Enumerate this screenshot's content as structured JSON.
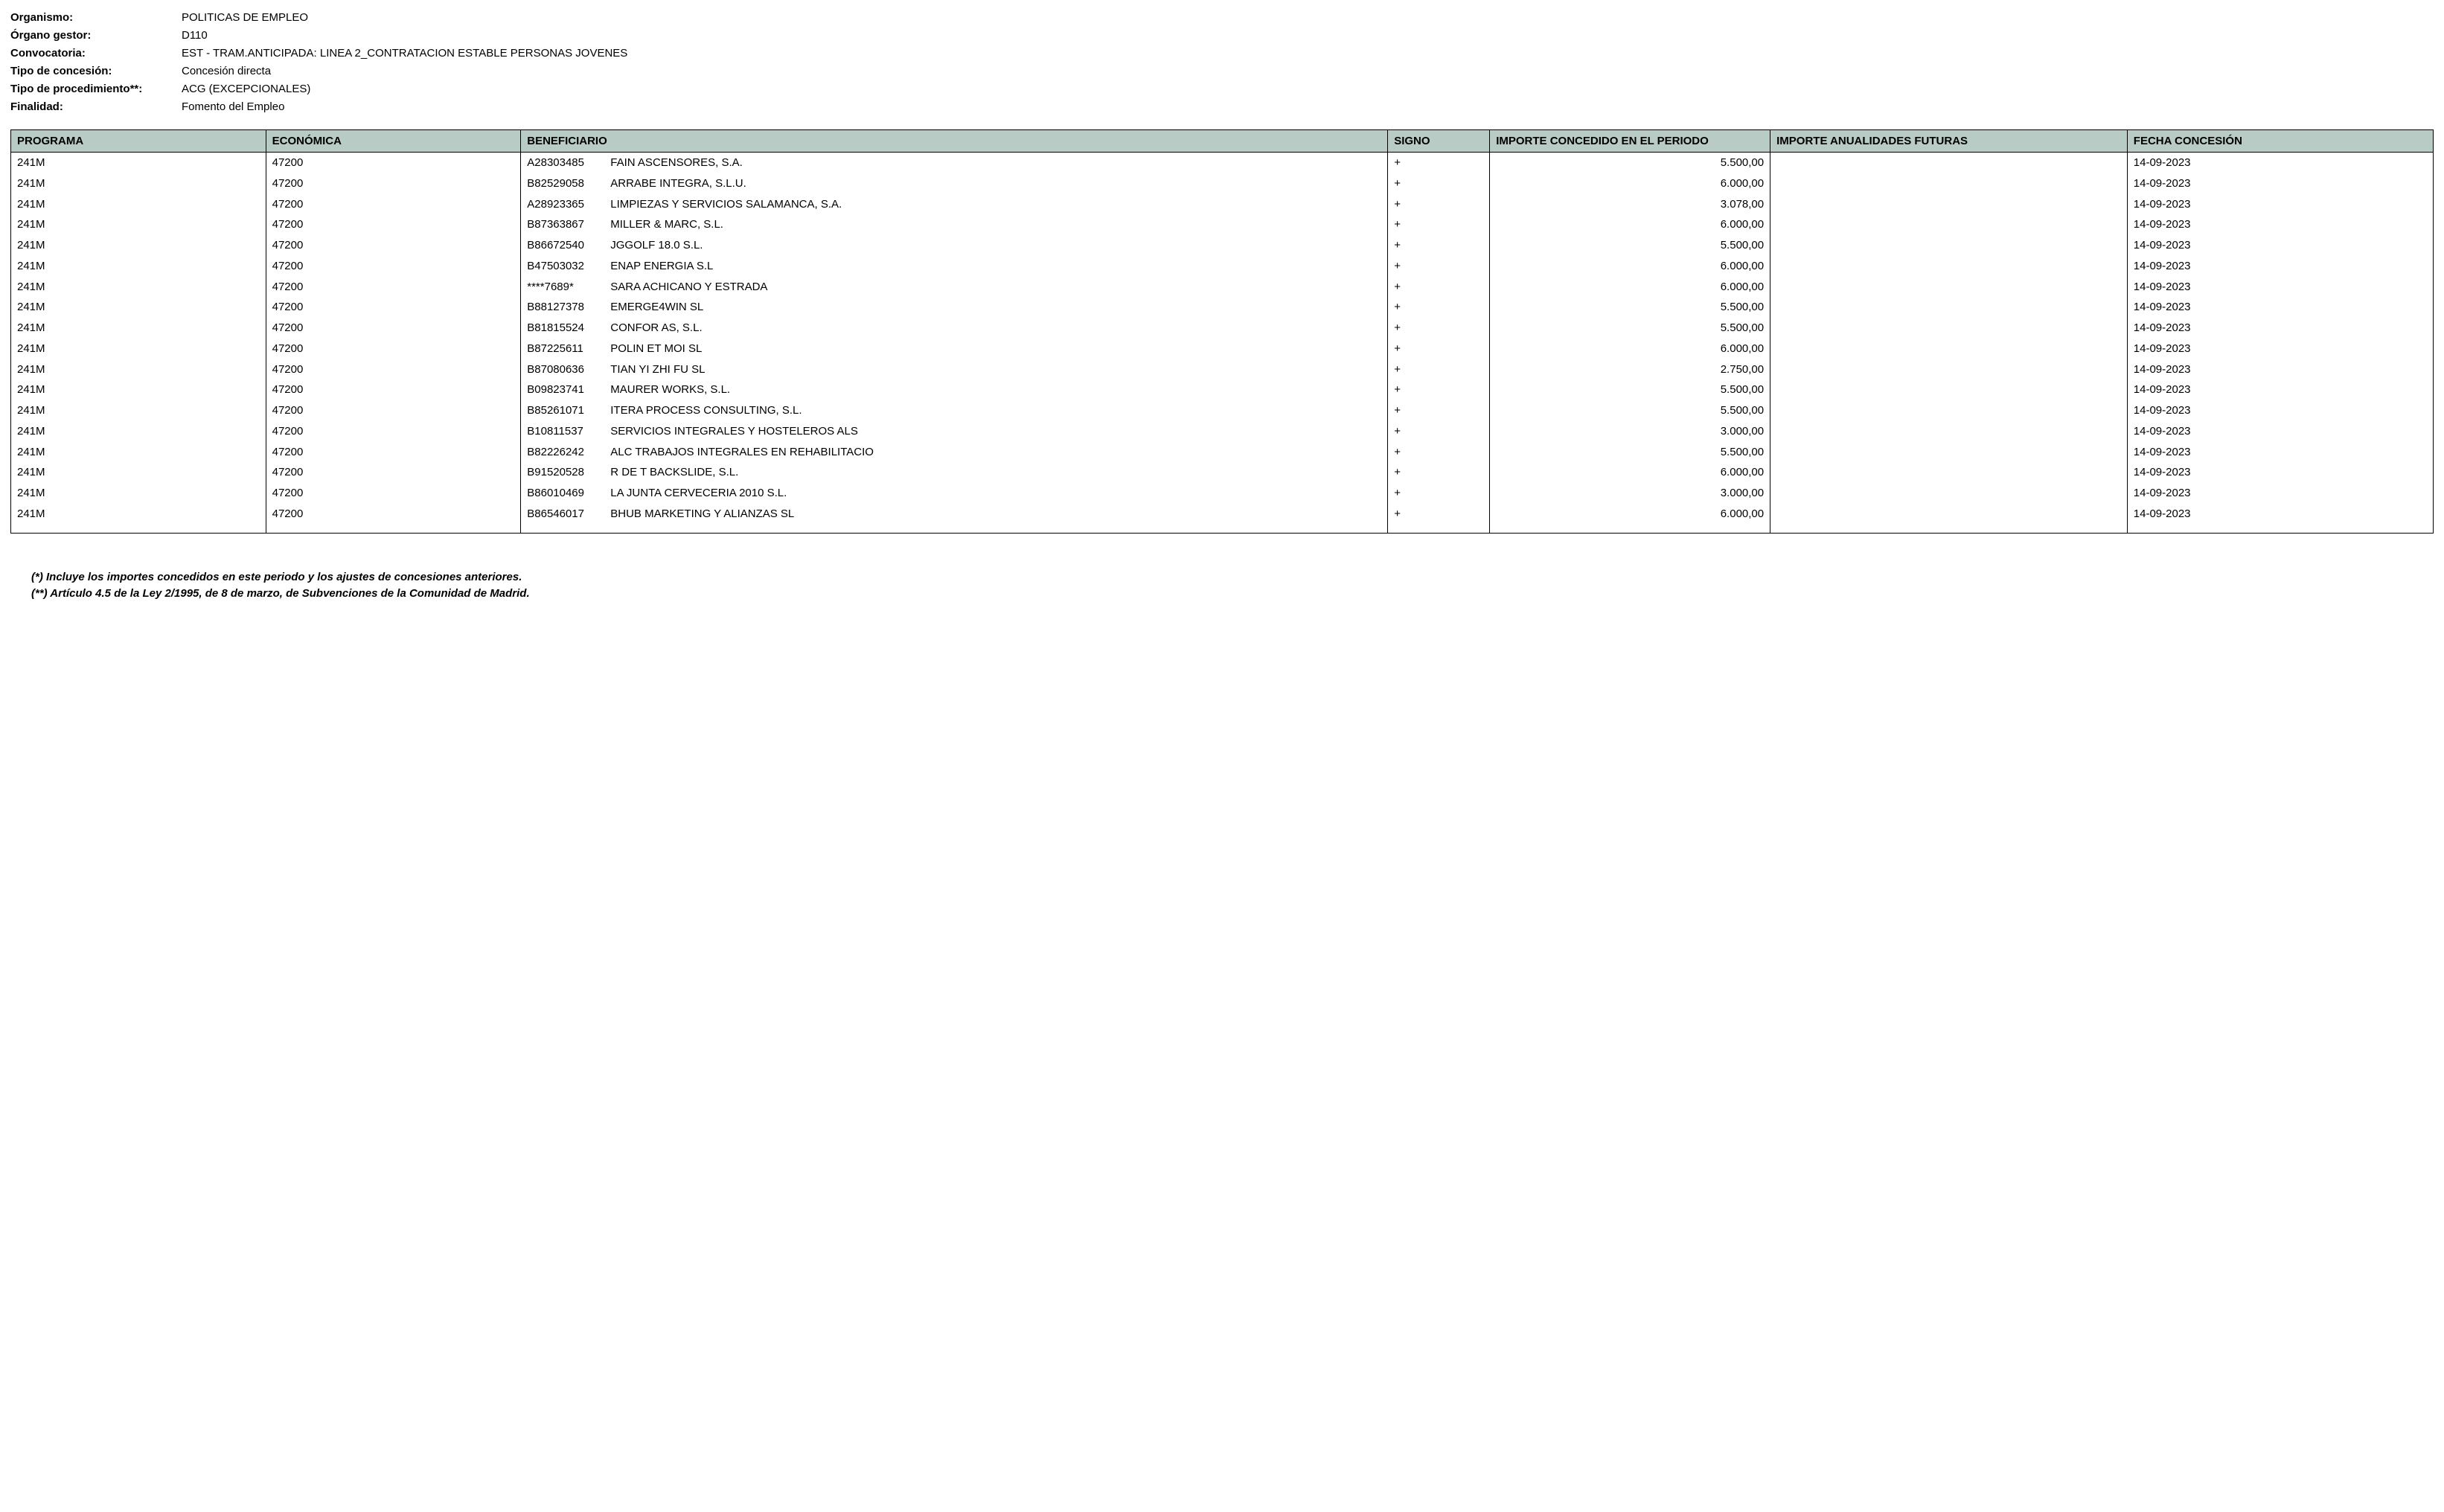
{
  "header": {
    "fields": [
      {
        "label": "Organismo:",
        "value": "POLITICAS DE EMPLEO"
      },
      {
        "label": "Órgano gestor:",
        "value": "D110"
      },
      {
        "label": "Convocatoria:",
        "value": "EST - TRAM.ANTICIPADA:  LINEA 2_CONTRATACION ESTABLE PERSONAS JOVENES"
      },
      {
        "label": "Tipo de concesión:",
        "value": "Concesión directa"
      },
      {
        "label": "Tipo de procedimiento**:",
        "value": "ACG (EXCEPCIONALES)"
      },
      {
        "label": "Finalidad:",
        "value": "Fomento del Empleo"
      }
    ]
  },
  "table": {
    "columns": [
      "PROGRAMA",
      "ECONÓMICA",
      "BENEFICIARIO",
      "SIGNO",
      "IMPORTE CONCEDIDO EN EL PERIODO",
      "IMPORTE ANUALIDADES FUTURAS",
      "FECHA CONCESIÓN"
    ],
    "rows": [
      {
        "programa": "241M",
        "economica": "47200",
        "nif": "A28303485",
        "nombre": "FAIN ASCENSORES, S.A.",
        "signo": "+",
        "importe_periodo": "5.500,00",
        "importe_futuras": "",
        "fecha": "14-09-2023"
      },
      {
        "programa": "241M",
        "economica": "47200",
        "nif": "B82529058",
        "nombre": "ARRABE INTEGRA, S.L.U.",
        "signo": "+",
        "importe_periodo": "6.000,00",
        "importe_futuras": "",
        "fecha": "14-09-2023"
      },
      {
        "programa": "241M",
        "economica": "47200",
        "nif": "A28923365",
        "nombre": "LIMPIEZAS Y SERVICIOS SALAMANCA, S.A.",
        "signo": "+",
        "importe_periodo": "3.078,00",
        "importe_futuras": "",
        "fecha": "14-09-2023"
      },
      {
        "programa": "241M",
        "economica": "47200",
        "nif": "B87363867",
        "nombre": "MILLER & MARC, S.L.",
        "signo": "+",
        "importe_periodo": "6.000,00",
        "importe_futuras": "",
        "fecha": "14-09-2023"
      },
      {
        "programa": "241M",
        "economica": "47200",
        "nif": "B86672540",
        "nombre": "JGGOLF 18.0 S.L.",
        "signo": "+",
        "importe_periodo": "5.500,00",
        "importe_futuras": "",
        "fecha": "14-09-2023"
      },
      {
        "programa": "241M",
        "economica": "47200",
        "nif": "B47503032",
        "nombre": "ENAP ENERGIA S.L",
        "signo": "+",
        "importe_periodo": "6.000,00",
        "importe_futuras": "",
        "fecha": "14-09-2023"
      },
      {
        "programa": "241M",
        "economica": "47200",
        "nif": "****7689*",
        "nombre": "SARA ACHICANO Y ESTRADA",
        "signo": "+",
        "importe_periodo": "6.000,00",
        "importe_futuras": "",
        "fecha": "14-09-2023"
      },
      {
        "programa": "241M",
        "economica": "47200",
        "nif": "B88127378",
        "nombre": "EMERGE4WIN SL",
        "signo": "+",
        "importe_periodo": "5.500,00",
        "importe_futuras": "",
        "fecha": "14-09-2023"
      },
      {
        "programa": "241M",
        "economica": "47200",
        "nif": "B81815524",
        "nombre": "CONFOR AS, S.L.",
        "signo": "+",
        "importe_periodo": "5.500,00",
        "importe_futuras": "",
        "fecha": "14-09-2023"
      },
      {
        "programa": "241M",
        "economica": "47200",
        "nif": "B87225611",
        "nombre": "POLIN ET MOI SL",
        "signo": "+",
        "importe_periodo": "6.000,00",
        "importe_futuras": "",
        "fecha": "14-09-2023"
      },
      {
        "programa": "241M",
        "economica": "47200",
        "nif": "B87080636",
        "nombre": "TIAN YI ZHI FU SL",
        "signo": "+",
        "importe_periodo": "2.750,00",
        "importe_futuras": "",
        "fecha": "14-09-2023"
      },
      {
        "programa": "241M",
        "economica": "47200",
        "nif": "B09823741",
        "nombre": "MAURER WORKS, S.L.",
        "signo": "+",
        "importe_periodo": "5.500,00",
        "importe_futuras": "",
        "fecha": "14-09-2023"
      },
      {
        "programa": "241M",
        "economica": "47200",
        "nif": "B85261071",
        "nombre": "ITERA PROCESS CONSULTING, S.L.",
        "signo": "+",
        "importe_periodo": "5.500,00",
        "importe_futuras": "",
        "fecha": "14-09-2023"
      },
      {
        "programa": "241M",
        "economica": "47200",
        "nif": "B10811537",
        "nombre": "SERVICIOS INTEGRALES Y HOSTELEROS ALS",
        "signo": "+",
        "importe_periodo": "3.000,00",
        "importe_futuras": "",
        "fecha": "14-09-2023"
      },
      {
        "programa": "241M",
        "economica": "47200",
        "nif": "B82226242",
        "nombre": "ALC TRABAJOS INTEGRALES EN REHABILITACIO",
        "signo": "+",
        "importe_periodo": "5.500,00",
        "importe_futuras": "",
        "fecha": "14-09-2023"
      },
      {
        "programa": "241M",
        "economica": "47200",
        "nif": "B91520528",
        "nombre": "R DE T BACKSLIDE, S.L.",
        "signo": "+",
        "importe_periodo": "6.000,00",
        "importe_futuras": "",
        "fecha": "14-09-2023"
      },
      {
        "programa": "241M",
        "economica": "47200",
        "nif": "B86010469",
        "nombre": "LA JUNTA CERVECERIA 2010 S.L.",
        "signo": "+",
        "importe_periodo": "3.000,00",
        "importe_futuras": "",
        "fecha": "14-09-2023"
      },
      {
        "programa": "241M",
        "economica": "47200",
        "nif": "B86546017",
        "nombre": "BHUB MARKETING Y ALIANZAS SL",
        "signo": "+",
        "importe_periodo": "6.000,00",
        "importe_futuras": "",
        "fecha": "14-09-2023"
      }
    ]
  },
  "footnotes": [
    "(*) Incluye los importes concedidos en este periodo y los ajustes de concesiones anteriores.",
    "(**) Artículo 4.5 de la Ley 2/1995, de 8 de marzo, de Subvenciones de la Comunidad de Madrid."
  ]
}
